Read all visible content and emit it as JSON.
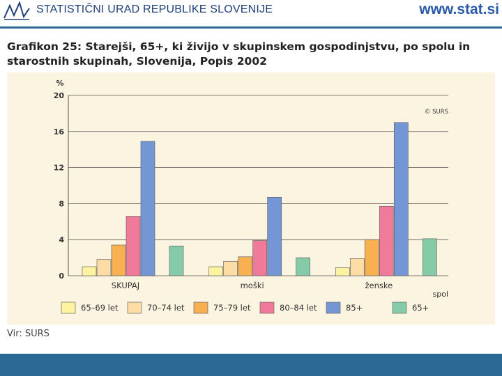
{
  "header": {
    "org_name": "STATISTIČNI URAD REPUBLIKE SLOVENIJE",
    "website": "www.stat.si"
  },
  "title": {
    "prefix": "Grafikon 25:",
    "text": "Starejši, 65+, ki živijo v skupinskem gospodinjstvu, po spolu in starostnih skupinah, Slovenija, Popis 2002"
  },
  "source": "Vir: SURS",
  "colors": {
    "accent": "#2c6a96",
    "chart_background": "#fbf4e0"
  },
  "chart_data": {
    "type": "bar",
    "title": "",
    "ylabel": "%",
    "xlabel": "spol",
    "watermark": "© SURS",
    "ylim": [
      0,
      20
    ],
    "yticks": [
      0,
      4,
      8,
      12,
      16,
      20
    ],
    "grid": true,
    "legend_position": "bottom",
    "categories": [
      "SKUPAJ",
      "moški",
      "ženske"
    ],
    "series": [
      {
        "name": "65–69 let",
        "color": "#fdf3a0",
        "values": [
          1.0,
          1.0,
          0.9
        ]
      },
      {
        "name": "70–74 let",
        "color": "#fddca6",
        "values": [
          1.8,
          1.6,
          1.9
        ]
      },
      {
        "name": "75–79 let",
        "color": "#f8b050",
        "values": [
          3.4,
          2.1,
          4.0
        ]
      },
      {
        "name": "80–84 let",
        "color": "#f07a9a",
        "values": [
          6.6,
          3.9,
          7.7
        ]
      },
      {
        "name": "85+",
        "color": "#7496d4",
        "values": [
          14.9,
          8.7,
          17.0
        ]
      },
      {
        "name": "65+",
        "color": "#86cba8",
        "values": [
          3.3,
          2.0,
          4.1
        ]
      }
    ]
  }
}
